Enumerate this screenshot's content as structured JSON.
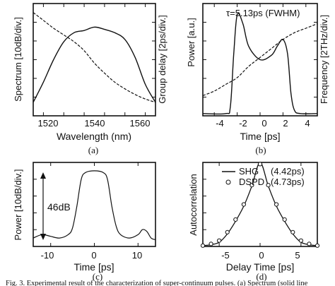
{
  "panels": {
    "a": {
      "label": "(a)",
      "ylabel_left": "Spectrum [10dB/div.]",
      "ylabel_right": "Group delay [2ps/div.]",
      "xlabel": "Wavelength (nm)",
      "xticks": [
        "1520",
        "1540",
        "1560"
      ]
    },
    "b": {
      "label": "(b)",
      "annotation": "τ=5.13ps (FWHM)",
      "ylabel_left": "Power [a.u.]",
      "ylabel_right": "Frequency [2THz/div.]",
      "xlabel": "Time [ps]",
      "xticks": [
        "-4",
        "-2",
        "0",
        "2",
        "4"
      ]
    },
    "c": {
      "label": "(c)",
      "annotation": "46dB",
      "ylabel": "Power [10dB/div.]",
      "xlabel": "Time [ps]",
      "xticks": [
        "-10",
        "0",
        "10"
      ]
    },
    "d": {
      "label": "(d)",
      "ylabel": "Autocorrelation",
      "xlabel": "Delay Time [ps]",
      "xticks": [
        "-5",
        "0",
        "5"
      ],
      "legend": [
        {
          "name": "SHG",
          "value": "(4.42ps)",
          "style": "line"
        },
        {
          "name": "DSPD",
          "value": "(4.73ps)",
          "style": "circle"
        }
      ]
    }
  },
  "caption": "Fig. 3. Experimental result of the characterization of super-continuum pulses. (a) Spectrum (solid line",
  "chart_data": [
    {
      "type": "line",
      "xlabel": "Wavelength (nm)",
      "ylabel": "Spectrum [10dB/div.]",
      "xlim": [
        1515,
        1575
      ],
      "series": [
        {
          "name": "",
          "x": [
            1515,
            1520,
            1525,
            1530,
            1535,
            1540,
            1545,
            1550,
            1555,
            1560,
            1565,
            1570,
            1575
          ],
          "y": [
            0.12,
            0.3,
            0.5,
            0.66,
            0.74,
            0.76,
            0.79,
            0.77,
            0.74,
            0.68,
            0.52,
            0.28,
            0.12
          ]
        },
        {
          "name": "",
          "x": [
            1515,
            1520,
            1525,
            1530,
            1535,
            1540,
            1545,
            1550,
            1555,
            1560,
            1565,
            1570,
            1575
          ],
          "y": [
            0.92,
            0.85,
            0.78,
            0.72,
            0.66,
            0.58,
            0.47,
            0.38,
            0.3,
            0.24,
            0.19,
            0.15,
            0.12
          ]
        }
      ]
    },
    {
      "type": "line",
      "xlabel": "Time [ps]",
      "ylabel": "Power [a.u.]",
      "xlim": [
        -5,
        5
      ],
      "series": [
        {
          "name": "",
          "x": [
            -5,
            -3,
            -2.6,
            -2.3,
            -2,
            -1.5,
            -1,
            0,
            1,
            1.5,
            2,
            2.4,
            2.7,
            3,
            3.5,
            5
          ],
          "y": [
            0.02,
            0.02,
            0.08,
            0.55,
            0.9,
            0.82,
            0.62,
            0.5,
            0.54,
            0.62,
            0.68,
            0.55,
            0.2,
            0.05,
            0.02,
            0.02
          ]
        },
        {
          "name": "",
          "x": [
            -5,
            -4,
            -3,
            -2,
            -1,
            0,
            1,
            2,
            3,
            4,
            5
          ],
          "y": [
            0.18,
            0.22,
            0.28,
            0.34,
            0.44,
            0.52,
            0.6,
            0.68,
            0.74,
            0.78,
            0.82
          ]
        }
      ]
    },
    {
      "type": "line",
      "xlabel": "Time [ps]",
      "ylabel": "Power [10dB/div.]",
      "xlim": [
        -14,
        14
      ],
      "series": [
        {
          "name": "",
          "x": [
            -14,
            -12,
            -10,
            -8,
            -6,
            -5,
            -4,
            -3,
            -2,
            0,
            2,
            3,
            4,
            5,
            6,
            8,
            10,
            11,
            12,
            13,
            14
          ],
          "y": [
            0.1,
            0.14,
            0.12,
            0.1,
            0.14,
            0.22,
            0.48,
            0.8,
            0.88,
            0.9,
            0.88,
            0.8,
            0.48,
            0.24,
            0.14,
            0.1,
            0.14,
            0.2,
            0.18,
            0.1,
            0.08
          ]
        }
      ]
    },
    {
      "type": "line",
      "xlabel": "Delay Time [ps]",
      "ylabel": "Autocorrelation",
      "xlim": [
        -7,
        7
      ],
      "series": [
        {
          "name": "SHG",
          "x": [
            -7,
            -6,
            -5,
            -4,
            -3,
            -2,
            -1,
            0,
            1,
            2,
            3,
            4,
            5,
            6,
            7
          ],
          "y": [
            0.01,
            0.02,
            0.05,
            0.15,
            0.3,
            0.48,
            0.72,
            1.0,
            0.72,
            0.48,
            0.3,
            0.15,
            0.05,
            0.02,
            0.01
          ]
        },
        {
          "name": "DSPD",
          "x": [
            -7,
            -6,
            -5,
            -4,
            -3,
            -2,
            -1,
            0,
            1,
            2,
            3,
            4,
            5,
            6,
            7
          ],
          "y": [
            0.01,
            0.03,
            0.07,
            0.17,
            0.32,
            0.5,
            0.73,
            0.98,
            0.73,
            0.5,
            0.32,
            0.17,
            0.07,
            0.03,
            0.01
          ]
        }
      ]
    }
  ]
}
